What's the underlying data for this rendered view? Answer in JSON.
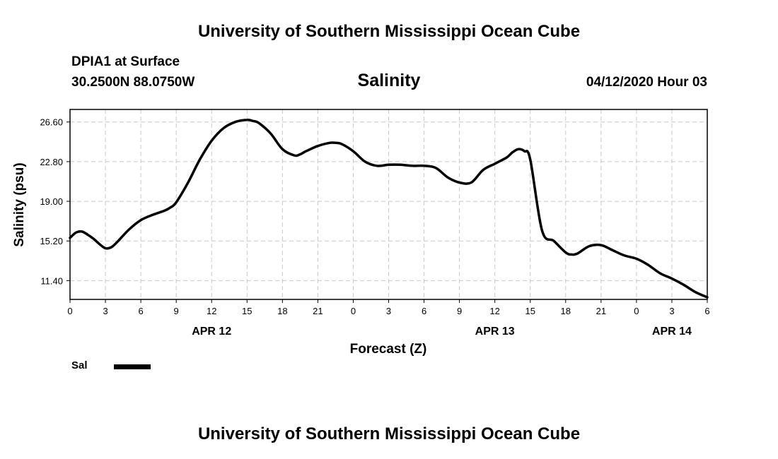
{
  "header": {
    "title": "University of Southern Mississippi Ocean Cube",
    "station": "DPIA1 at Surface",
    "coords": "30.2500N 88.0750W",
    "variable": "Salinity",
    "issued": "04/12/2020 Hour 03"
  },
  "footer": {
    "title": "University of Southern Mississippi Ocean Cube"
  },
  "legend": {
    "label": "Sal"
  },
  "chart_data": {
    "type": "line",
    "title": "Salinity",
    "xlabel": "Forecast (Z)",
    "ylabel": "Salinity (psu)",
    "x_unit": "forecast hour from 2020-04-12 00Z",
    "xlim": [
      0,
      54
    ],
    "ylim": [
      9.6,
      27.8
    ],
    "x_ticks": [
      {
        "x": 0,
        "label": "0"
      },
      {
        "x": 3,
        "label": "3"
      },
      {
        "x": 6,
        "label": "6"
      },
      {
        "x": 9,
        "label": "9"
      },
      {
        "x": 12,
        "label": "12"
      },
      {
        "x": 15,
        "label": "15"
      },
      {
        "x": 18,
        "label": "18"
      },
      {
        "x": 21,
        "label": "21"
      },
      {
        "x": 24,
        "label": "0"
      },
      {
        "x": 27,
        "label": "3"
      },
      {
        "x": 30,
        "label": "6"
      },
      {
        "x": 33,
        "label": "9"
      },
      {
        "x": 36,
        "label": "12"
      },
      {
        "x": 39,
        "label": "15"
      },
      {
        "x": 42,
        "label": "18"
      },
      {
        "x": 45,
        "label": "21"
      },
      {
        "x": 48,
        "label": "0"
      },
      {
        "x": 51,
        "label": "3"
      },
      {
        "x": 54,
        "label": "6"
      }
    ],
    "date_labels": [
      {
        "x": 12,
        "label": "APR 12"
      },
      {
        "x": 36,
        "label": "APR 13"
      },
      {
        "x": 51,
        "label": "APR 14"
      }
    ],
    "y_ticks": [
      {
        "y": 11.4,
        "label": "11.40"
      },
      {
        "y": 15.2,
        "label": "15.20"
      },
      {
        "y": 19.0,
        "label": "19.00"
      },
      {
        "y": 22.8,
        "label": "22.80"
      },
      {
        "y": 26.6,
        "label": "26.60"
      }
    ],
    "grid": true,
    "series": [
      {
        "name": "Sal",
        "color": "#000000",
        "x": [
          0,
          0.5,
          1,
          1.5,
          2,
          2.5,
          3,
          3.5,
          4,
          5,
          6,
          7,
          8,
          8.5,
          9,
          10,
          11,
          12,
          13,
          14,
          15,
          15.5,
          16,
          17,
          18,
          19,
          19.5,
          20,
          21,
          22,
          22.5,
          23,
          24,
          25,
          26,
          27,
          28,
          29,
          30,
          31,
          32,
          33,
          34,
          35,
          36,
          37,
          37.5,
          38,
          38.5,
          39,
          40,
          41,
          42,
          42.5,
          43,
          44,
          45,
          46,
          47,
          48,
          49,
          50,
          51,
          52,
          53,
          54
        ],
        "y": [
          15.5,
          16.0,
          16.1,
          15.8,
          15.4,
          14.9,
          14.5,
          14.6,
          15.1,
          16.3,
          17.2,
          17.7,
          18.1,
          18.4,
          18.9,
          20.8,
          23.0,
          24.8,
          26.0,
          26.6,
          26.8,
          26.7,
          26.5,
          25.5,
          24.0,
          23.4,
          23.5,
          23.8,
          24.3,
          24.6,
          24.6,
          24.5,
          23.8,
          22.8,
          22.4,
          22.5,
          22.5,
          22.4,
          22.4,
          22.2,
          21.3,
          20.8,
          20.8,
          22.0,
          22.6,
          23.2,
          23.7,
          24.0,
          23.8,
          23.0,
          16.2,
          15.2,
          14.1,
          13.9,
          14.0,
          14.7,
          14.8,
          14.3,
          13.8,
          13.5,
          12.9,
          12.1,
          11.6,
          11.0,
          10.3,
          9.8
        ]
      }
    ]
  }
}
